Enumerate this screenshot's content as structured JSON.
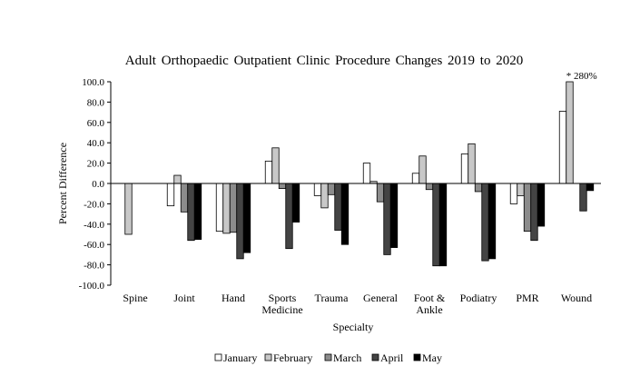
{
  "chart_data": {
    "type": "bar",
    "title": "Adult Orthopaedic Outpatient Clinic Procedure Changes 2019 to 2020",
    "xlabel": "Specialty",
    "ylabel": "Percent Difference",
    "ylim": [
      -100,
      100
    ],
    "yticks": [
      "100.0",
      "80.0",
      "60.0",
      "40.0",
      "20.0",
      "0.0",
      "-20.0",
      "-40.0",
      "-60.0",
      "-80.0",
      "-100.0"
    ],
    "ytick_values": [
      100,
      80,
      60,
      40,
      20,
      0,
      -20,
      -40,
      -60,
      -80,
      -100
    ],
    "grid": false,
    "legend_position": "bottom",
    "categories": [
      [
        "Spine"
      ],
      [
        "Joint"
      ],
      [
        "Hand"
      ],
      [
        "Sports",
        "Medicine"
      ],
      [
        "Trauma"
      ],
      [
        "General"
      ],
      [
        "Foot &",
        "Ankle"
      ],
      [
        "Podiatry"
      ],
      [
        "PMR"
      ],
      [
        "Wound"
      ]
    ],
    "series": [
      {
        "name": "January",
        "color": "#ffffff",
        "values": [
          0,
          -22,
          -47,
          22,
          -12,
          20,
          10,
          29,
          -20,
          71
        ]
      },
      {
        "name": "February",
        "color": "#c8c8c8",
        "values": [
          -50,
          8,
          -49,
          35,
          -24,
          2,
          27,
          39,
          -12,
          100
        ]
      },
      {
        "name": "March",
        "color": "#8c8c8c",
        "values": [
          0,
          -28,
          -48,
          -5,
          -11,
          -18,
          -6,
          -8,
          -47,
          0
        ]
      },
      {
        "name": "April",
        "color": "#444444",
        "values": [
          0,
          -56,
          -74,
          -64,
          -46,
          -70,
          -81,
          -76,
          -56,
          -27
        ]
      },
      {
        "name": "May",
        "color": "#000000",
        "values": [
          0,
          -55,
          -68,
          -38,
          -60,
          -63,
          -81,
          -74,
          -42,
          -7
        ]
      }
    ],
    "annotation": {
      "text": "* 280%",
      "category_index": 9,
      "series_index": 1
    }
  }
}
